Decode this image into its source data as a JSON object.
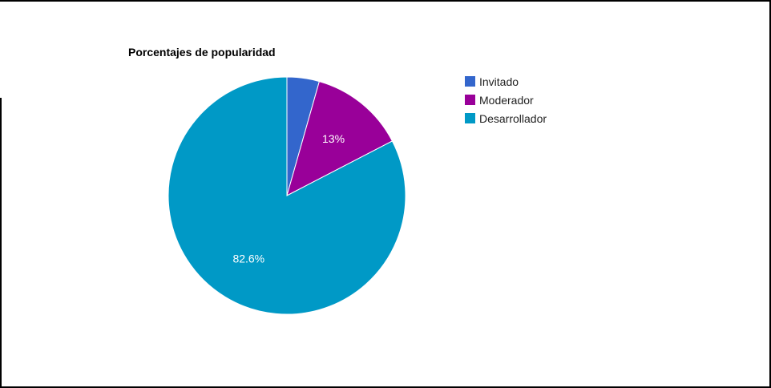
{
  "chart_data": {
    "type": "pie",
    "title": "Porcentajes de popularidad",
    "categories": [
      "Invitado",
      "Moderador",
      "Desarrollador"
    ],
    "values": [
      4.4,
      13.0,
      82.6
    ],
    "slice_labels": [
      "",
      "13%",
      "82.6%"
    ],
    "colors": [
      "#3366cc",
      "#990099",
      "#0099c6"
    ],
    "legend_position": "right"
  }
}
